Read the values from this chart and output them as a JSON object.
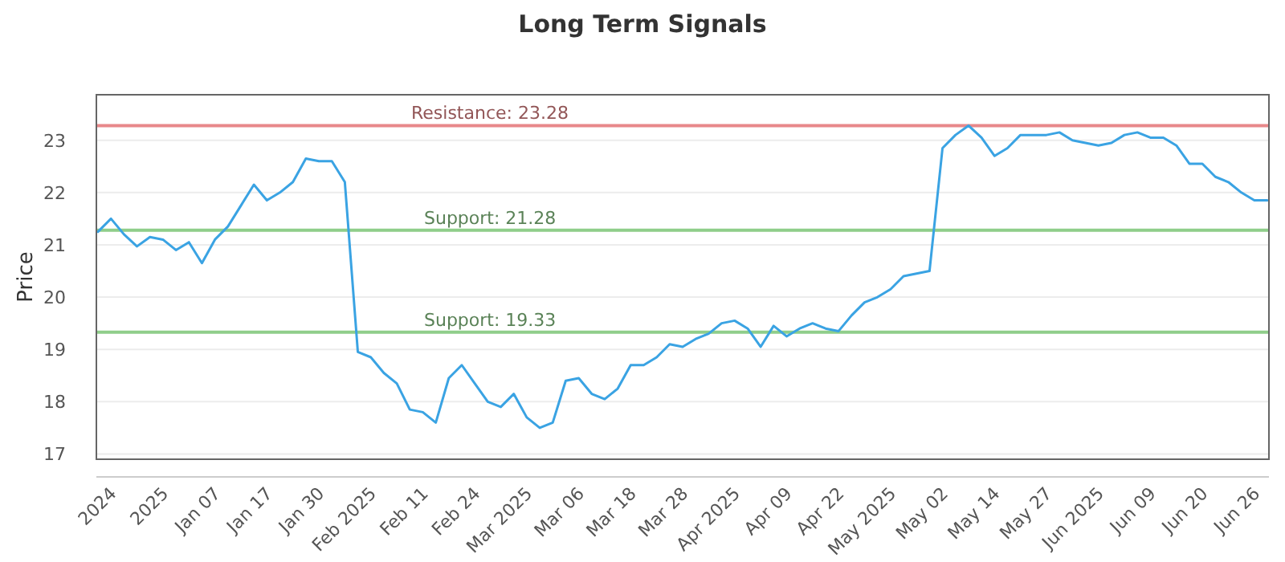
{
  "chart_data": {
    "type": "line",
    "title": "Long Term Signals",
    "ylabel": "Price",
    "categories": [
      null,
      "2024",
      null,
      null,
      null,
      "2025",
      null,
      null,
      null,
      "Jan 07",
      null,
      null,
      null,
      "Jan 17",
      null,
      null,
      null,
      "Jan 30",
      null,
      null,
      null,
      "Feb 2025",
      null,
      null,
      null,
      "Feb 11",
      null,
      null,
      null,
      "Feb 24",
      null,
      null,
      null,
      "Mar 2025",
      null,
      null,
      null,
      "Mar 06",
      null,
      null,
      null,
      "Mar 18",
      null,
      null,
      null,
      "Mar 28",
      null,
      null,
      null,
      "Apr 2025",
      null,
      null,
      null,
      "Apr 09",
      null,
      null,
      null,
      "Apr 22",
      null,
      null,
      null,
      "May 2025",
      null,
      null,
      null,
      "May 02",
      null,
      null,
      null,
      "May 14",
      null,
      null,
      null,
      "May 27",
      null,
      null,
      null,
      "Jun 2025",
      null,
      null,
      null,
      "Jun 09",
      null,
      null,
      null,
      "Jun 20",
      null,
      null,
      null,
      "Jun 26",
      null
    ],
    "series": [
      {
        "color": "#3aa3e3",
        "values": [
          21.25,
          21.5,
          21.2,
          20.97,
          21.15,
          21.1,
          20.9,
          21.05,
          20.65,
          21.1,
          21.35,
          21.75,
          22.15,
          21.85,
          22.0,
          22.2,
          22.65,
          22.6,
          22.6,
          22.2,
          18.95,
          18.85,
          18.55,
          18.35,
          17.85,
          17.8,
          17.6,
          18.45,
          18.7,
          18.35,
          18.0,
          17.9,
          18.15,
          17.7,
          17.5,
          17.6,
          18.4,
          18.45,
          18.15,
          18.05,
          18.25,
          18.7,
          18.7,
          18.85,
          19.1,
          19.05,
          19.2,
          19.3,
          19.5,
          19.55,
          19.4,
          19.05,
          19.45,
          19.25,
          19.4,
          19.5,
          19.4,
          19.35,
          19.65,
          19.9,
          20.0,
          20.15,
          20.4,
          20.45,
          20.5,
          22.85,
          23.1,
          23.28,
          23.05,
          22.7,
          22.85,
          23.1,
          23.1,
          23.1,
          23.15,
          23.0,
          22.95,
          22.9,
          22.95,
          23.1,
          23.15,
          23.05,
          23.05,
          22.9,
          22.55,
          22.55,
          22.3,
          22.2,
          22.0,
          21.85,
          21.85
        ]
      }
    ],
    "ylim": [
      16.9,
      23.87
    ],
    "yticks": [
      17,
      18,
      19,
      20,
      21,
      22,
      23
    ],
    "grid": "y",
    "marker": "none",
    "line_style": "solid",
    "ref_lines": [
      {
        "axis": "y",
        "value": 23.28,
        "label": "Resistance: 23.28",
        "color": "#e8888a"
      },
      {
        "axis": "y",
        "value": 21.28,
        "label": "Support: 21.28",
        "color": "#8fce8a"
      },
      {
        "axis": "y",
        "value": 19.33,
        "label": "Support: 19.33",
        "color": "#8fce8a"
      }
    ]
  }
}
